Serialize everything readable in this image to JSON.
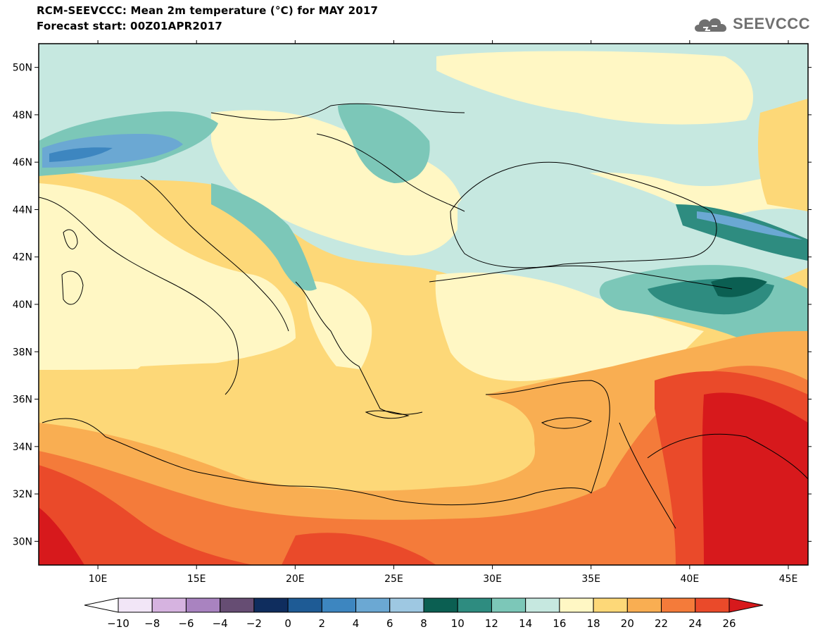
{
  "header": {
    "title_line1": "RCM-SEEVCCC: Mean 2m temperature (°C) for MAY 2017",
    "title_line2": "Forecast start: 00Z01APR2017"
  },
  "logo": {
    "text": "SEEVCCC",
    "icon": "cloud-logo-icon",
    "color": "#707070"
  },
  "map": {
    "lat_labels": [
      "50N",
      "48N",
      "46N",
      "44N",
      "42N",
      "40N",
      "38N",
      "36N",
      "34N",
      "32N",
      "30N"
    ],
    "lon_labels": [
      "10E",
      "15E",
      "20E",
      "25E",
      "30E",
      "35E",
      "40E",
      "45E"
    ],
    "lon_range": [
      7,
      46
    ],
    "lat_range": [
      29,
      51
    ]
  },
  "colorbar": {
    "labels": [
      "−10",
      "−8",
      "−6",
      "−4",
      "−2",
      "0",
      "2",
      "4",
      "6",
      "8",
      "10",
      "12",
      "14",
      "16",
      "18",
      "20",
      "22",
      "24",
      "26"
    ],
    "colors": [
      "#ffffff",
      "#f2e6f7",
      "#d6b3e0",
      "#a983c0",
      "#664d73",
      "#0f2d5e",
      "#1e5b95",
      "#3d86c0",
      "#6ba8d3",
      "#9ec8e2",
      "#0b5f52",
      "#2e8c80",
      "#7cc7b8",
      "#c6e8e0",
      "#fff7c4",
      "#fdd878",
      "#f9ae52",
      "#f47b3a",
      "#ea4a2a",
      "#d7191c"
    ]
  }
}
